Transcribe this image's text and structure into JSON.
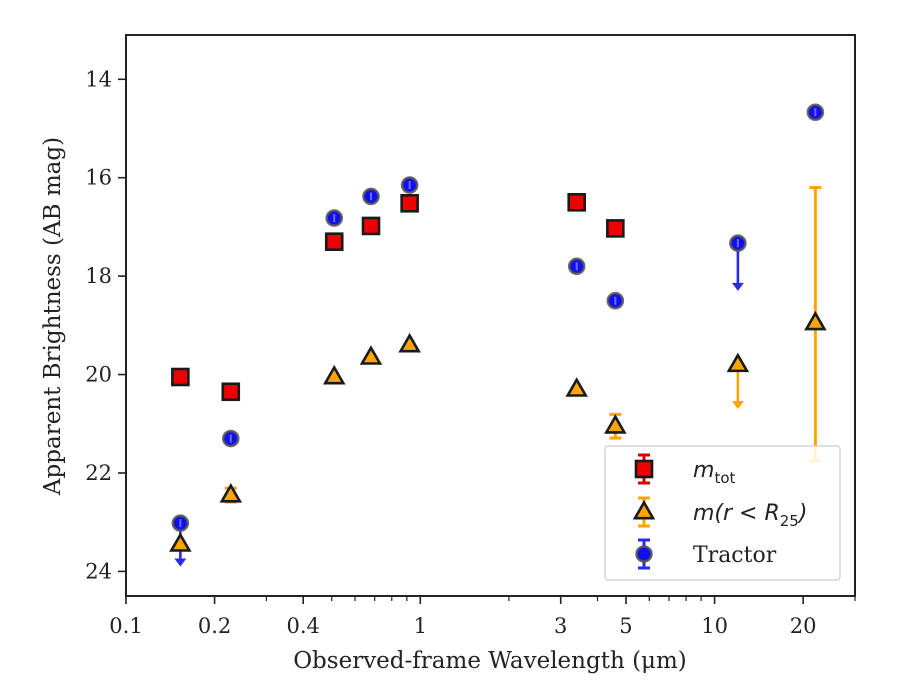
{
  "chart_data": {
    "type": "scatter",
    "xlabel": "Observed-frame Wavelength (μm)",
    "ylabel": "Apparent Brightness (AB mag)",
    "xscale": "log",
    "xlim": [
      0.1,
      30
    ],
    "ylim": [
      24.5,
      13.1
    ],
    "y_inverted": true,
    "x_ticks": [
      {
        "value": 0.1,
        "label": "0.1"
      },
      {
        "value": 0.2,
        "label": "0.2"
      },
      {
        "value": 0.4,
        "label": "0.4"
      },
      {
        "value": 1,
        "label": "1"
      },
      {
        "value": 3,
        "label": "3"
      },
      {
        "value": 5,
        "label": "5"
      },
      {
        "value": 10,
        "label": "10"
      },
      {
        "value": 20,
        "label": "20"
      }
    ],
    "x_minor_ticks": [
      0.3,
      0.5,
      0.6,
      0.7,
      0.8,
      0.9,
      2,
      4,
      6,
      7,
      8,
      9,
      30
    ],
    "y_ticks": [
      {
        "value": 14,
        "label": "14"
      },
      {
        "value": 16,
        "label": "16"
      },
      {
        "value": 18,
        "label": "18"
      },
      {
        "value": 20,
        "label": "20"
      },
      {
        "value": 22,
        "label": "22"
      },
      {
        "value": 24,
        "label": "24"
      }
    ],
    "legend": {
      "position": "lower right",
      "entries": [
        {
          "series": "mtot",
          "main": "m",
          "sub": "tot",
          "suffix": ""
        },
        {
          "series": "mR25",
          "main": "m(r < R",
          "sub": "25",
          "suffix": ")"
        },
        {
          "series": "tractor",
          "text": "Tractor"
        }
      ]
    },
    "series": [
      {
        "key": "mtot",
        "marker": "square",
        "color": "#ee0000",
        "edge": "#1a1a1a",
        "errcolor": "#dd0000",
        "points": [
          {
            "x": 0.153,
            "y": 20.05
          },
          {
            "x": 0.227,
            "y": 20.35
          },
          {
            "x": 0.51,
            "y": 17.3
          },
          {
            "x": 0.68,
            "y": 16.98
          },
          {
            "x": 0.92,
            "y": 16.52
          },
          {
            "x": 3.4,
            "y": 16.5
          },
          {
            "x": 4.6,
            "y": 17.03
          }
        ]
      },
      {
        "key": "mR25",
        "marker": "triangle",
        "color": "#ffa500",
        "edge": "#1a1a1a",
        "errcolor": "#ffa500",
        "points": [
          {
            "x": 0.153,
            "y": 23.45
          },
          {
            "x": 0.227,
            "y": 22.45,
            "err": 0.1
          },
          {
            "x": 0.51,
            "y": 20.05
          },
          {
            "x": 0.68,
            "y": 19.65
          },
          {
            "x": 0.92,
            "y": 19.4
          },
          {
            "x": 3.4,
            "y": 20.3
          },
          {
            "x": 4.6,
            "y": 21.05,
            "err": 0.2
          },
          {
            "x": 12.0,
            "y": 19.8,
            "upper_limit_to": 20.7
          },
          {
            "x": 22.0,
            "y": 18.95,
            "err_low": 16.2,
            "err_high": 21.75
          }
        ]
      },
      {
        "key": "tractor",
        "marker": "circle",
        "color": "#1010ee",
        "edge": "#555555",
        "errcolor": "#2a2aee",
        "points": [
          {
            "x": 0.153,
            "y": 23.02,
            "upper_limit_to": 23.9
          },
          {
            "x": 0.227,
            "y": 21.3
          },
          {
            "x": 0.51,
            "y": 16.82
          },
          {
            "x": 0.68,
            "y": 16.38
          },
          {
            "x": 0.92,
            "y": 16.15
          },
          {
            "x": 3.4,
            "y": 17.8
          },
          {
            "x": 4.6,
            "y": 18.5
          },
          {
            "x": 12.0,
            "y": 17.33,
            "upper_limit_to": 18.3
          },
          {
            "x": 22.0,
            "y": 14.67
          }
        ]
      }
    ]
  }
}
